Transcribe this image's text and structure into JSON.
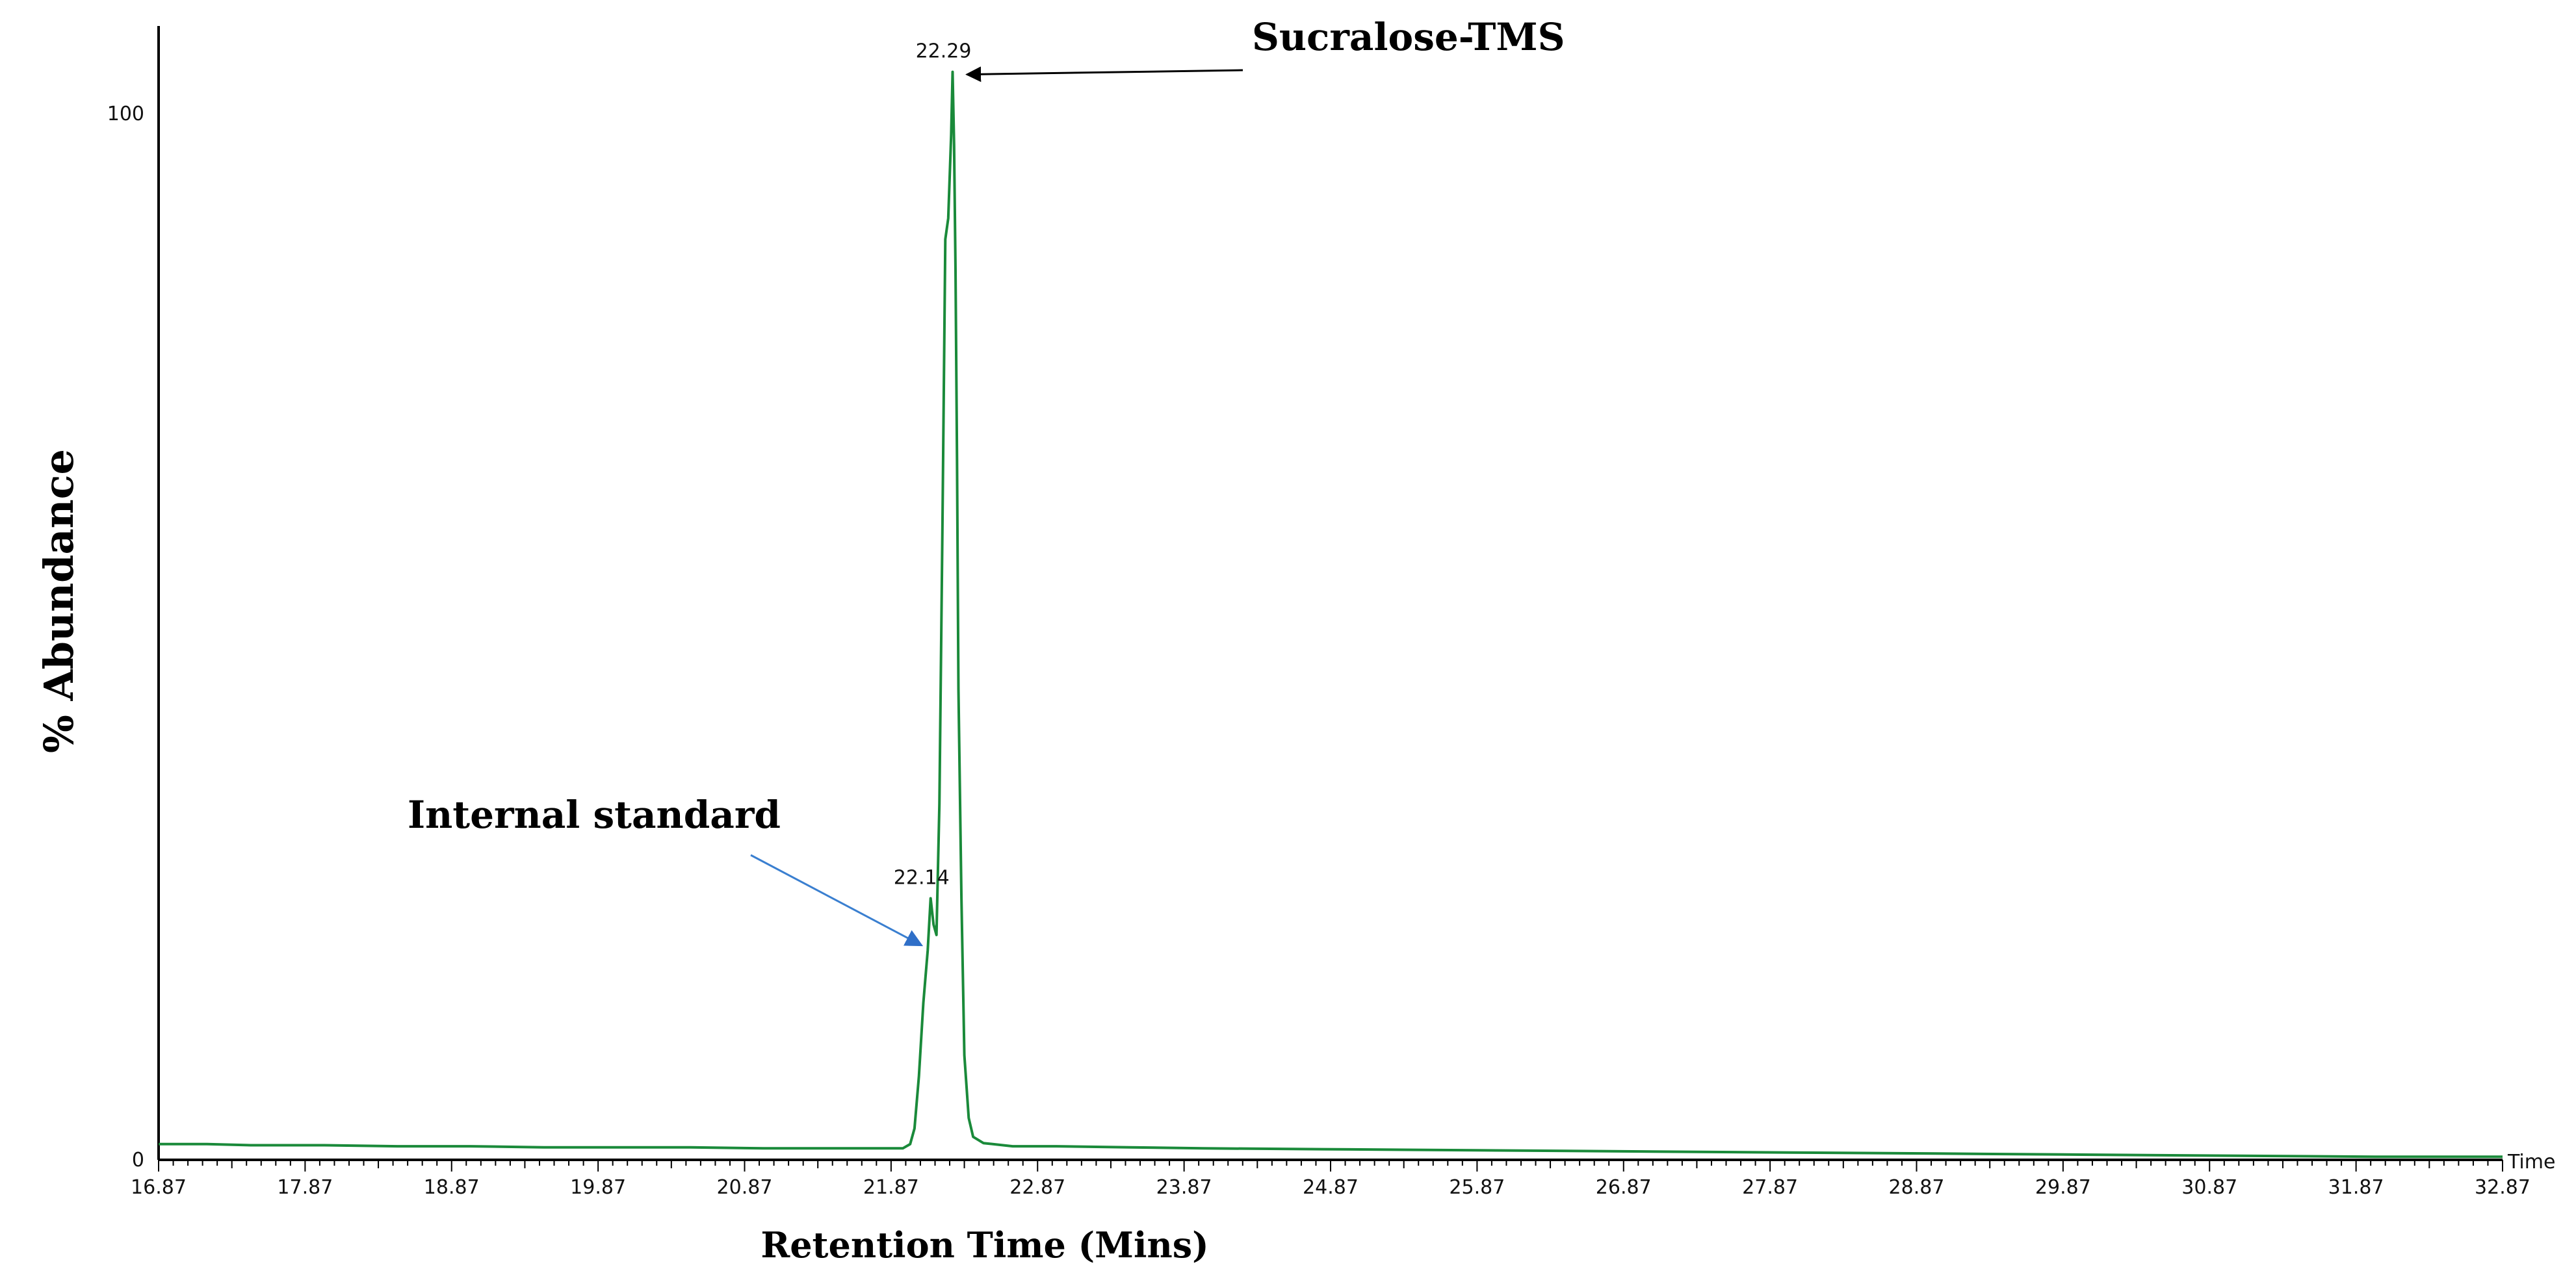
{
  "chart_data": {
    "type": "line",
    "title": "",
    "xlabel": "Retention Time (Mins)",
    "ylabel": "% Abundance",
    "x_unit_label": "Time",
    "xlim": [
      16.87,
      32.87
    ],
    "ylim": [
      0,
      100
    ],
    "x_ticks": [
      "16.87",
      "17.87",
      "18.87",
      "19.87",
      "20.87",
      "21.87",
      "22.87",
      "23.87",
      "24.87",
      "25.87",
      "26.87",
      "27.87",
      "28.87",
      "29.87",
      "30.87",
      "31.87",
      "32.87"
    ],
    "y_ticks": [
      "0",
      "100"
    ],
    "grid": false,
    "legend": "none",
    "series": [
      {
        "color": "#1a8a3a",
        "points": [
          [
            16.87,
            1.5
          ],
          [
            17.2,
            1.5
          ],
          [
            17.5,
            1.4
          ],
          [
            18.0,
            1.4
          ],
          [
            18.5,
            1.3
          ],
          [
            19.0,
            1.3
          ],
          [
            19.5,
            1.2
          ],
          [
            20.0,
            1.2
          ],
          [
            20.5,
            1.2
          ],
          [
            21.0,
            1.1
          ],
          [
            21.5,
            1.1
          ],
          [
            21.95,
            1.1
          ],
          [
            22.0,
            1.5
          ],
          [
            22.03,
            3.0
          ],
          [
            22.06,
            8.0
          ],
          [
            22.09,
            15.0
          ],
          [
            22.12,
            20.0
          ],
          [
            22.14,
            25.0
          ],
          [
            22.16,
            22.5
          ],
          [
            22.18,
            21.5
          ],
          [
            22.2,
            34.0
          ],
          [
            22.22,
            60.0
          ],
          [
            22.24,
            88.0
          ],
          [
            22.26,
            90.0
          ],
          [
            22.28,
            98.0
          ],
          [
            22.29,
            104.0
          ],
          [
            22.3,
            97.0
          ],
          [
            22.31,
            85.0
          ],
          [
            22.32,
            67.0
          ],
          [
            22.33,
            45.0
          ],
          [
            22.35,
            25.0
          ],
          [
            22.37,
            10.0
          ],
          [
            22.4,
            4.0
          ],
          [
            22.43,
            2.2
          ],
          [
            22.5,
            1.6
          ],
          [
            22.7,
            1.3
          ],
          [
            23.0,
            1.3
          ],
          [
            23.5,
            1.2
          ],
          [
            24.0,
            1.1
          ],
          [
            25.0,
            1.0
          ],
          [
            26.0,
            0.9
          ],
          [
            27.0,
            0.8
          ],
          [
            28.0,
            0.7
          ],
          [
            29.0,
            0.6
          ],
          [
            30.0,
            0.5
          ],
          [
            31.0,
            0.4
          ],
          [
            32.0,
            0.3
          ],
          [
            32.87,
            0.3
          ]
        ]
      }
    ],
    "peaks": [
      {
        "label": "22.14",
        "x": 22.14,
        "y": 25.0
      },
      {
        "label": "22.29",
        "x": 22.29,
        "y": 104.0
      }
    ],
    "annotations": [
      {
        "text": "Sucralose-TMS",
        "target_x": 22.29,
        "target_y": 104.0,
        "arrow_color": "#000000"
      },
      {
        "text": "Internal standard",
        "target_x": 22.14,
        "target_y": 21.5,
        "arrow_color": "#3a7fd0"
      }
    ]
  }
}
